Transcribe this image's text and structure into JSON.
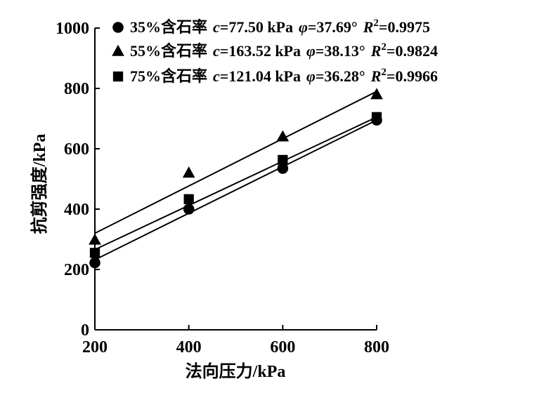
{
  "chart_data": {
    "type": "scatter",
    "xlabel": "法向压力/kPa",
    "ylabel": "抗剪强度/kPa",
    "xlim": [
      200,
      800
    ],
    "ylim": [
      0,
      1000
    ],
    "xticks": [
      200,
      400,
      600,
      800
    ],
    "yticks": [
      0,
      200,
      400,
      600,
      800,
      1000
    ],
    "grid": false,
    "legend_position": "top-left",
    "series": [
      {
        "name": "35%含石率",
        "marker": "circle",
        "c_label": "c",
        "c_value": "=77.50 kPa",
        "phi_label": "φ",
        "phi_value": "=37.69°",
        "r2_label": "R",
        "r2_sup": "2",
        "r2_value": "=0.9975",
        "x": [
          200,
          400,
          600,
          800
        ],
        "y": [
          222,
          400,
          535,
          695
        ],
        "fit": [
          [
            200,
            232
          ],
          [
            800,
            695
          ]
        ]
      },
      {
        "name": "55%含石率",
        "marker": "triangle",
        "c_label": "c",
        "c_value": "=163.52 kPa",
        "phi_label": "φ",
        "phi_value": "=38.13°",
        "r2_label": "R",
        "r2_sup": "2",
        "r2_value": "=0.9824",
        "x": [
          200,
          400,
          600,
          800
        ],
        "y": [
          298,
          520,
          640,
          780
        ],
        "fit": [
          [
            200,
            320
          ],
          [
            800,
            790
          ]
        ]
      },
      {
        "name": "75%含石率",
        "marker": "square",
        "c_label": "c",
        "c_value": "=121.04 kPa",
        "phi_label": "φ",
        "phi_value": "=36.28°",
        "r2_label": "R",
        "r2_sup": "2",
        "r2_value": "=0.9966",
        "x": [
          200,
          400,
          600,
          800
        ],
        "y": [
          255,
          433,
          563,
          705
        ],
        "fit": [
          [
            200,
            266
          ],
          [
            800,
            705
          ]
        ]
      }
    ]
  }
}
